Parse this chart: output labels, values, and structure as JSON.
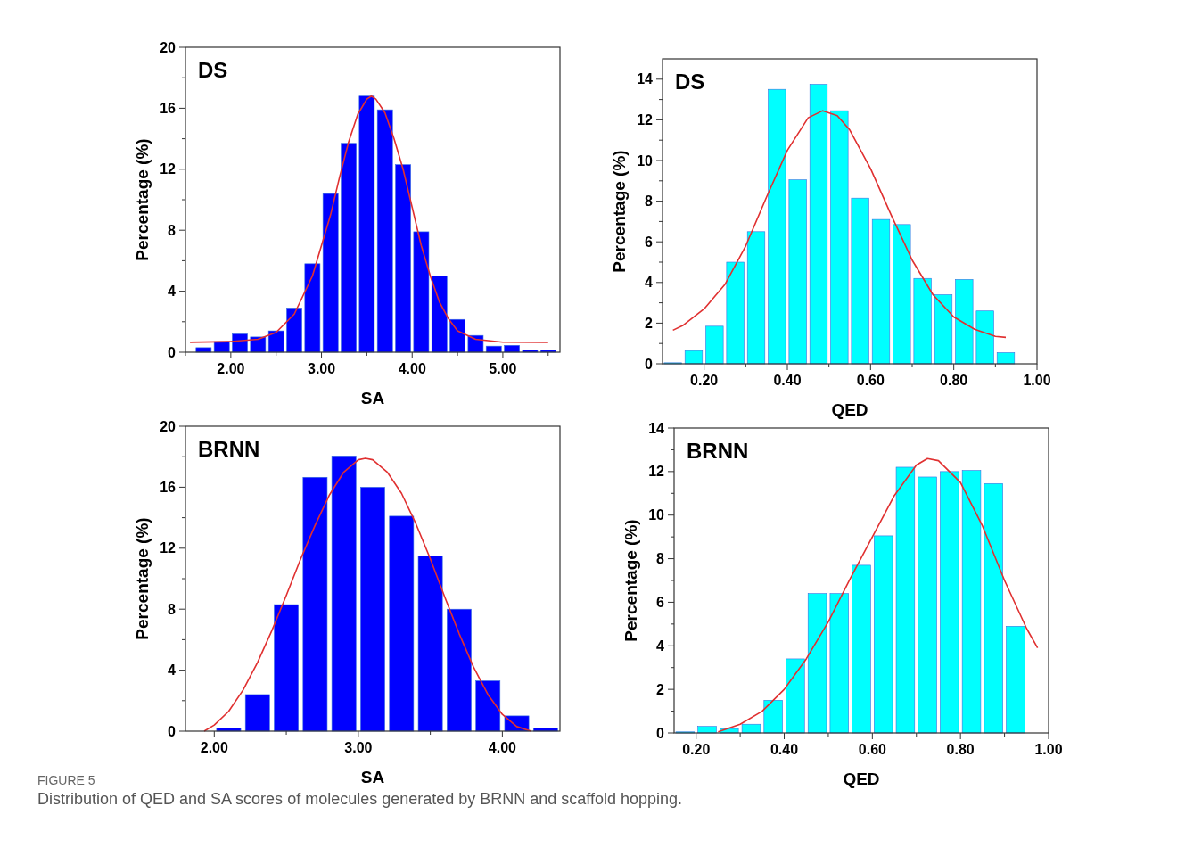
{
  "chart_data": [
    {
      "type": "histogram",
      "title": "DS",
      "xlabel": "SA",
      "ylabel": "Percentage (%)",
      "color": "#0000ff",
      "bins": [
        1.6,
        1.8,
        2.0,
        2.2,
        2.4,
        2.6,
        2.8,
        3.0,
        3.2,
        3.4,
        3.6,
        3.8,
        4.0,
        4.2,
        4.4,
        4.6,
        4.8,
        5.0,
        5.2,
        5.4,
        5.6
      ],
      "values": [
        0.3,
        0.7,
        1.2,
        1.0,
        1.4,
        2.9,
        5.8,
        10.4,
        13.7,
        16.8,
        15.9,
        12.3,
        7.9,
        5.0,
        2.15,
        1.1,
        0.4,
        0.45,
        0.15,
        0.13
      ],
      "series": [
        {
          "type": "line",
          "color": "#e03030",
          "x": [
            1.55,
            2.0,
            2.3,
            2.5,
            2.7,
            2.9,
            3.0,
            3.1,
            3.2,
            3.3,
            3.4,
            3.5,
            3.55,
            3.6,
            3.7,
            3.8,
            3.9,
            4.0,
            4.1,
            4.2,
            4.3,
            4.4,
            4.5,
            4.7,
            5.0,
            5.5
          ],
          "values": [
            0.65,
            0.7,
            0.85,
            1.3,
            2.5,
            5,
            7,
            9,
            11.5,
            13.8,
            15.6,
            16.6,
            16.8,
            16.6,
            15.7,
            14.0,
            12,
            9.5,
            7,
            5,
            3.3,
            2.2,
            1.4,
            0.85,
            0.66,
            0.65
          ]
        }
      ],
      "xlim": [
        1.5,
        5.63
      ],
      "ylim": [
        0,
        20
      ],
      "xticks": [
        {
          "value": 1.5,
          "label": null
        },
        {
          "value": 2,
          "label": "2.00"
        },
        {
          "value": 2.5,
          "label": null
        },
        {
          "value": 3,
          "label": "3.00"
        },
        {
          "value": 3.5,
          "label": null
        },
        {
          "value": 4,
          "label": "4.00"
        },
        {
          "value": 4.5,
          "label": null
        },
        {
          "value": 5,
          "label": "5.00"
        },
        {
          "value": 5.5,
          "label": null
        }
      ],
      "yticks": [
        0,
        {
          "value": 2,
          "label": null
        },
        4,
        {
          "value": 6,
          "label": null
        },
        8,
        {
          "value": 10,
          "label": null
        },
        12,
        {
          "value": 14,
          "label": null
        },
        16,
        {
          "value": 18,
          "label": null
        },
        20
      ],
      "grid": false
    },
    {
      "type": "histogram",
      "title": "DS",
      "xlabel": "QED",
      "ylabel": "Percentage (%)",
      "color": "#00ffff",
      "bins": [
        0.1,
        0.15,
        0.2,
        0.25,
        0.3,
        0.35,
        0.4,
        0.45,
        0.5,
        0.55,
        0.6,
        0.65,
        0.7,
        0.75,
        0.8,
        0.85,
        0.9,
        0.95
      ],
      "values": [
        0.05,
        0.65,
        1.85,
        5.0,
        6.5,
        13.5,
        9.05,
        13.75,
        12.45,
        8.15,
        7.1,
        6.85,
        4.2,
        3.4,
        4.15,
        2.6,
        0.55
      ],
      "series": [
        {
          "type": "line",
          "color": "#e03030",
          "x": [
            0.125,
            0.15,
            0.2,
            0.25,
            0.3,
            0.35,
            0.4,
            0.45,
            0.485,
            0.52,
            0.55,
            0.6,
            0.65,
            0.7,
            0.75,
            0.8,
            0.85,
            0.9,
            0.925
          ],
          "values": [
            1.65,
            1.9,
            2.7,
            3.9,
            5.8,
            8.2,
            10.5,
            12.1,
            12.45,
            12.2,
            11.5,
            9.6,
            7.3,
            5.1,
            3.4,
            2.3,
            1.7,
            1.35,
            1.3
          ]
        }
      ],
      "xlim": [
        0.1,
        1.0
      ],
      "ylim": [
        0,
        15
      ],
      "xticks": [
        {
          "value": 0.2,
          "label": "0.20"
        },
        {
          "value": 0.3,
          "label": null
        },
        {
          "value": 0.4,
          "label": "0.40"
        },
        {
          "value": 0.5,
          "label": null
        },
        {
          "value": 0.6,
          "label": "0.60"
        },
        {
          "value": 0.7,
          "label": null
        },
        {
          "value": 0.8,
          "label": "0.80"
        },
        {
          "value": 0.9,
          "label": null
        },
        {
          "value": 1.0,
          "label": "1.00"
        }
      ],
      "yticks": [
        0,
        {
          "value": 1,
          "label": null
        },
        2,
        {
          "value": 3,
          "label": null
        },
        4,
        {
          "value": 5,
          "label": null
        },
        6,
        {
          "value": 7,
          "label": null
        },
        8,
        {
          "value": 9,
          "label": null
        },
        10,
        {
          "value": 11,
          "label": null
        },
        12,
        {
          "value": 13,
          "label": null
        },
        14
      ]
    },
    {
      "type": "histogram",
      "title": "BRNN",
      "xlabel": "SA",
      "ylabel": "Percentage (%)",
      "color": "#0000ff",
      "bins": [
        2.0,
        2.2,
        2.4,
        2.6,
        2.8,
        3.0,
        3.2,
        3.4,
        3.6,
        3.8,
        4.0,
        4.2,
        4.4
      ],
      "values": [
        0.2,
        2.4,
        8.3,
        16.65,
        18.05,
        16.0,
        14.1,
        11.5,
        8.0,
        3.3,
        1.0,
        0.2
      ],
      "series": [
        {
          "type": "line",
          "color": "#e03030",
          "x": [
            1.93,
            2.0,
            2.1,
            2.2,
            2.3,
            2.4,
            2.5,
            2.6,
            2.7,
            2.8,
            2.9,
            3.0,
            3.05,
            3.1,
            3.2,
            3.3,
            3.4,
            3.5,
            3.6,
            3.7,
            3.8,
            3.9,
            4.0,
            4.1,
            4.2
          ],
          "values": [
            0,
            0.4,
            1.3,
            2.7,
            4.5,
            6.6,
            8.9,
            11.3,
            13.5,
            15.5,
            17.0,
            17.8,
            17.9,
            17.8,
            17.0,
            15.6,
            13.6,
            11.3,
            8.8,
            6.4,
            4.2,
            2.4,
            1.1,
            0.3,
            0
          ]
        }
      ],
      "xlim": [
        1.8,
        4.4
      ],
      "ylim": [
        0,
        20
      ],
      "xticks": [
        {
          "value": 2,
          "label": "2.00"
        },
        {
          "value": 2.5,
          "label": null
        },
        {
          "value": 3,
          "label": "3.00"
        },
        {
          "value": 3.5,
          "label": null
        },
        {
          "value": 4,
          "label": "4.00"
        }
      ],
      "yticks": [
        0,
        {
          "value": 2,
          "label": null
        },
        4,
        {
          "value": 6,
          "label": null
        },
        8,
        {
          "value": 10,
          "label": null
        },
        12,
        {
          "value": 14,
          "label": null
        },
        16,
        {
          "value": 18,
          "label": null
        },
        20
      ],
      "grid": false
    },
    {
      "type": "histogram",
      "title": "BRNN",
      "xlabel": "QED",
      "ylabel": "Percentage (%)",
      "color": "#00ffff",
      "bins": [
        0.15,
        0.2,
        0.25,
        0.3,
        0.35,
        0.4,
        0.45,
        0.5,
        0.55,
        0.6,
        0.65,
        0.7,
        0.75,
        0.8,
        0.85,
        0.9,
        0.95
      ],
      "values": [
        0.05,
        0.3,
        0.2,
        0.4,
        1.5,
        3.4,
        6.4,
        6.4,
        7.7,
        9.05,
        12.2,
        11.75,
        12.0,
        12.05,
        11.45,
        4.9
      ],
      "series": [
        {
          "type": "line",
          "color": "#e03030",
          "x": [
            0.25,
            0.3,
            0.35,
            0.4,
            0.45,
            0.5,
            0.55,
            0.6,
            0.65,
            0.7,
            0.725,
            0.75,
            0.8,
            0.85,
            0.9,
            0.95,
            0.975
          ],
          "values": [
            0.05,
            0.4,
            1.0,
            2.0,
            3.4,
            5.1,
            7.1,
            9.0,
            10.9,
            12.3,
            12.6,
            12.5,
            11.5,
            9.5,
            7.0,
            4.8,
            3.9
          ]
        }
      ],
      "xlim": [
        0.15,
        1.0
      ],
      "ylim": [
        0,
        14
      ],
      "xticks": [
        {
          "value": 0.2,
          "label": "0.20"
        },
        {
          "value": 0.3,
          "label": null
        },
        {
          "value": 0.4,
          "label": "0.40"
        },
        {
          "value": 0.5,
          "label": null
        },
        {
          "value": 0.6,
          "label": "0.60"
        },
        {
          "value": 0.7,
          "label": null
        },
        {
          "value": 0.8,
          "label": "0.80"
        },
        {
          "value": 0.9,
          "label": null
        },
        {
          "value": 1.0,
          "label": "1.00"
        }
      ],
      "yticks": [
        0,
        {
          "value": 1,
          "label": null
        },
        2,
        {
          "value": 3,
          "label": null
        },
        4,
        {
          "value": 5,
          "label": null
        },
        6,
        {
          "value": 7,
          "label": null
        },
        8,
        {
          "value": 9,
          "label": null
        },
        10,
        {
          "value": 11,
          "label": null
        },
        12,
        {
          "value": 13,
          "label": null
        },
        14
      ],
      "annotations": [
        "FIGURE 5",
        "Distribution of QED and SA scores of molecules generated by BRNN and scaffold hopping."
      ]
    }
  ]
}
